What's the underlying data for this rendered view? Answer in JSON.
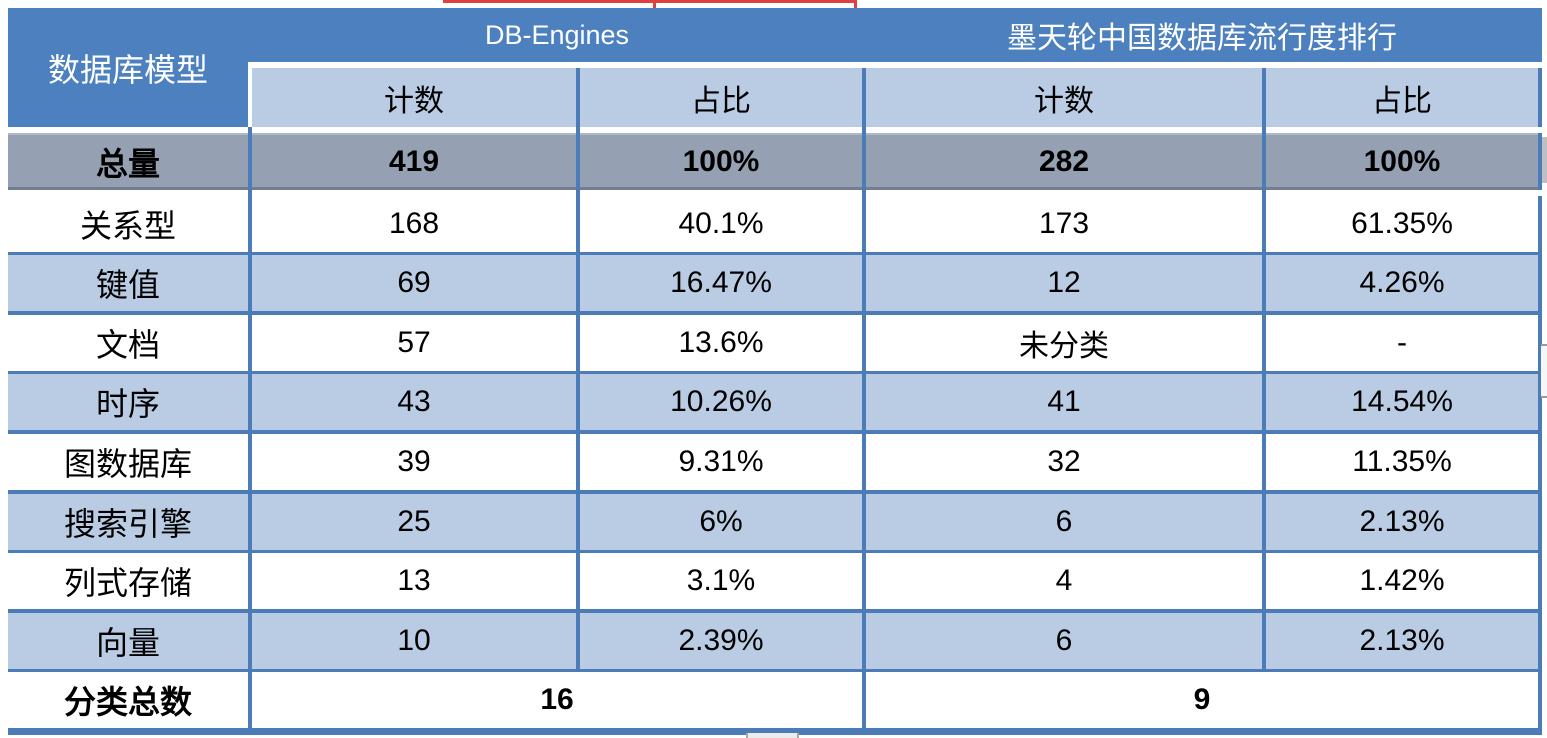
{
  "colors": {
    "header-blue": "#4d80be",
    "light-blue": "#b9cce4",
    "border-blue": "#4c7cb8",
    "gray-row": "#95a0b2",
    "red": "#e14040"
  },
  "chart_data": {
    "type": "table",
    "corner_header": "数据库模型",
    "group_headers": [
      "DB-Engines",
      "墨天轮中国数据库流行度排行"
    ],
    "sub_headers": [
      "计数",
      "占比",
      "计数",
      "占比"
    ],
    "rows": [
      {
        "label": "总量",
        "values": [
          "419",
          "100%",
          "282",
          "100%"
        ],
        "emphasis": true
      },
      {
        "label": "关系型",
        "values": [
          "168",
          "40.1%",
          "173",
          "61.35%"
        ]
      },
      {
        "label": "键值",
        "values": [
          "69",
          "16.47%",
          "12",
          "4.26%"
        ]
      },
      {
        "label": "文档",
        "values": [
          "57",
          "13.6%",
          "未分类",
          "-"
        ]
      },
      {
        "label": "时序",
        "values": [
          "43",
          "10.26%",
          "41",
          "14.54%"
        ]
      },
      {
        "label": "图数据库",
        "values": [
          "39",
          "9.31%",
          "32",
          "11.35%"
        ]
      },
      {
        "label": "搜索引擎",
        "values": [
          "25",
          "6%",
          "6",
          "2.13%"
        ]
      },
      {
        "label": "列式存储",
        "values": [
          "13",
          "3.1%",
          "4",
          "1.42%"
        ]
      },
      {
        "label": "向量",
        "values": [
          "10",
          "2.39%",
          "6",
          "2.13%"
        ]
      }
    ],
    "footer_row": {
      "label": "分类总数",
      "values": [
        "16",
        "9"
      ]
    }
  }
}
